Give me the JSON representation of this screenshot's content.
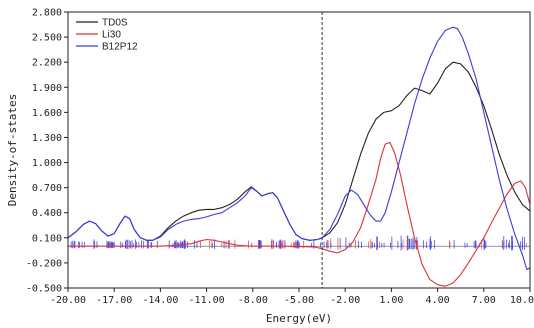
{
  "chart_data": {
    "type": "line",
    "xlabel": "Energy(eV)",
    "ylabel": "Density-of-states",
    "xlim": [
      -20,
      10
    ],
    "ylim": [
      -0.5,
      2.8
    ],
    "x_ticks": [
      -20,
      -17,
      -14,
      -11,
      -8,
      -5,
      -2,
      1,
      4,
      7,
      10
    ],
    "x_tick_labels": [
      "-20.00",
      "-17.00",
      "-14.00",
      "-11.00",
      "-8.00",
      "-5.00",
      "-2.00",
      "1.00",
      "4.00",
      "7.00",
      "10.0"
    ],
    "y_ticks": [
      -0.5,
      -0.2,
      0.1,
      0.4,
      0.7,
      1.0,
      1.3,
      1.6,
      1.9,
      2.2,
      2.5,
      2.8
    ],
    "y_tick_labels": [
      "-0.500",
      "-0.200",
      "0.100",
      "0.400",
      "0.700",
      "1.000",
      "1.300",
      "1.600",
      "1.900",
      "2.200",
      "2.500",
      "2.800"
    ],
    "fermi_level": -3.5,
    "legend_position": "top-left",
    "series": [
      {
        "name": "TD0S",
        "color": "#222222",
        "x": [
          -20,
          -19.5,
          -19,
          -18.6,
          -18.2,
          -17.8,
          -17.4,
          -17.0,
          -16.6,
          -16.3,
          -16.0,
          -15.7,
          -15.3,
          -14.9,
          -14.5,
          -14.0,
          -13.5,
          -13.0,
          -12.5,
          -12.0,
          -11.5,
          -11.0,
          -10.5,
          -10.0,
          -9.5,
          -9.0,
          -8.5,
          -8.1,
          -7.7,
          -7.4,
          -7.0,
          -6.7,
          -6.4,
          -6.0,
          -5.6,
          -5.2,
          -4.8,
          -4.3,
          -3.8,
          -3.5,
          -3.0,
          -2.5,
          -2.0,
          -1.5,
          -1.0,
          -0.5,
          0.0,
          0.5,
          1.0,
          1.5,
          2.0,
          2.5,
          3.0,
          3.5,
          4.0,
          4.5,
          5.0,
          5.5,
          6.0,
          6.5,
          7.0,
          7.5,
          8.0,
          8.5,
          9.0,
          9.5,
          10.0
        ],
        "y": [
          0.1,
          0.17,
          0.26,
          0.3,
          0.27,
          0.18,
          0.12,
          0.15,
          0.28,
          0.36,
          0.33,
          0.2,
          0.1,
          0.07,
          0.07,
          0.12,
          0.22,
          0.3,
          0.36,
          0.4,
          0.43,
          0.44,
          0.44,
          0.46,
          0.5,
          0.56,
          0.65,
          0.71,
          0.65,
          0.6,
          0.63,
          0.64,
          0.58,
          0.42,
          0.26,
          0.14,
          0.09,
          0.07,
          0.08,
          0.1,
          0.16,
          0.28,
          0.5,
          0.8,
          1.1,
          1.35,
          1.52,
          1.6,
          1.62,
          1.68,
          1.8,
          1.89,
          1.86,
          1.82,
          1.95,
          2.12,
          2.2,
          2.18,
          2.08,
          1.9,
          1.68,
          1.4,
          1.1,
          0.85,
          0.65,
          0.5,
          0.42
        ]
      },
      {
        "name": "Li30",
        "color": "#dd3333",
        "x": [
          -20,
          -18,
          -16,
          -14,
          -13,
          -12,
          -11.5,
          -11.0,
          -10.5,
          -10.0,
          -9.5,
          -9.0,
          -8.0,
          -6.0,
          -4.0,
          -3.5,
          -3.0,
          -2.5,
          -2.0,
          -1.5,
          -1.0,
          -0.5,
          0.0,
          0.3,
          0.6,
          0.9,
          1.2,
          1.6,
          2.0,
          2.5,
          3.0,
          3.5,
          4.0,
          4.5,
          5.0,
          5.5,
          6.0,
          6.5,
          7.0,
          7.5,
          8.0,
          8.5,
          9.0,
          9.4,
          9.7,
          10.0
        ],
        "y": [
          0.0,
          0.0,
          0.0,
          0.0,
          0.01,
          0.03,
          0.06,
          0.08,
          0.07,
          0.05,
          0.03,
          0.01,
          0.0,
          0.0,
          -0.01,
          -0.03,
          -0.06,
          -0.08,
          -0.04,
          0.05,
          0.22,
          0.5,
          0.8,
          1.05,
          1.22,
          1.24,
          1.12,
          0.85,
          0.5,
          0.1,
          -0.22,
          -0.4,
          -0.46,
          -0.48,
          -0.44,
          -0.34,
          -0.2,
          -0.05,
          0.1,
          0.28,
          0.45,
          0.62,
          0.75,
          0.78,
          0.7,
          0.5
        ]
      },
      {
        "name": "B12P12",
        "color": "#3b3bdd",
        "x": [
          -20,
          -19.5,
          -19,
          -18.6,
          -18.2,
          -17.8,
          -17.4,
          -17.0,
          -16.6,
          -16.3,
          -16.0,
          -15.7,
          -15.3,
          -14.9,
          -14.5,
          -14.0,
          -13.5,
          -13.0,
          -12.5,
          -12.0,
          -11.5,
          -11.0,
          -10.5,
          -10.0,
          -9.5,
          -9.0,
          -8.5,
          -8.1,
          -7.7,
          -7.4,
          -7.0,
          -6.7,
          -6.4,
          -6.0,
          -5.6,
          -5.2,
          -4.8,
          -4.3,
          -3.8,
          -3.5,
          -3.0,
          -2.5,
          -2.0,
          -1.6,
          -1.2,
          -0.8,
          -0.4,
          0.0,
          0.3,
          0.6,
          1.0,
          1.5,
          2.0,
          2.5,
          3.0,
          3.5,
          4.0,
          4.5,
          5.0,
          5.3,
          5.6,
          6.0,
          6.5,
          7.0,
          7.5,
          8.0,
          8.5,
          9.0,
          9.5,
          9.8,
          10.0
        ],
        "y": [
          0.1,
          0.17,
          0.26,
          0.3,
          0.27,
          0.18,
          0.12,
          0.15,
          0.28,
          0.36,
          0.33,
          0.2,
          0.1,
          0.07,
          0.07,
          0.11,
          0.2,
          0.26,
          0.3,
          0.32,
          0.33,
          0.35,
          0.38,
          0.4,
          0.46,
          0.52,
          0.6,
          0.7,
          0.65,
          0.6,
          0.63,
          0.64,
          0.58,
          0.42,
          0.26,
          0.14,
          0.09,
          0.07,
          0.08,
          0.1,
          0.2,
          0.38,
          0.6,
          0.67,
          0.62,
          0.5,
          0.38,
          0.3,
          0.3,
          0.4,
          0.65,
          1.0,
          1.35,
          1.7,
          2.0,
          2.25,
          2.45,
          2.58,
          2.62,
          2.6,
          2.5,
          2.3,
          2.0,
          1.6,
          1.2,
          0.8,
          0.45,
          0.15,
          -0.1,
          -0.28,
          -0.26
        ]
      }
    ]
  }
}
